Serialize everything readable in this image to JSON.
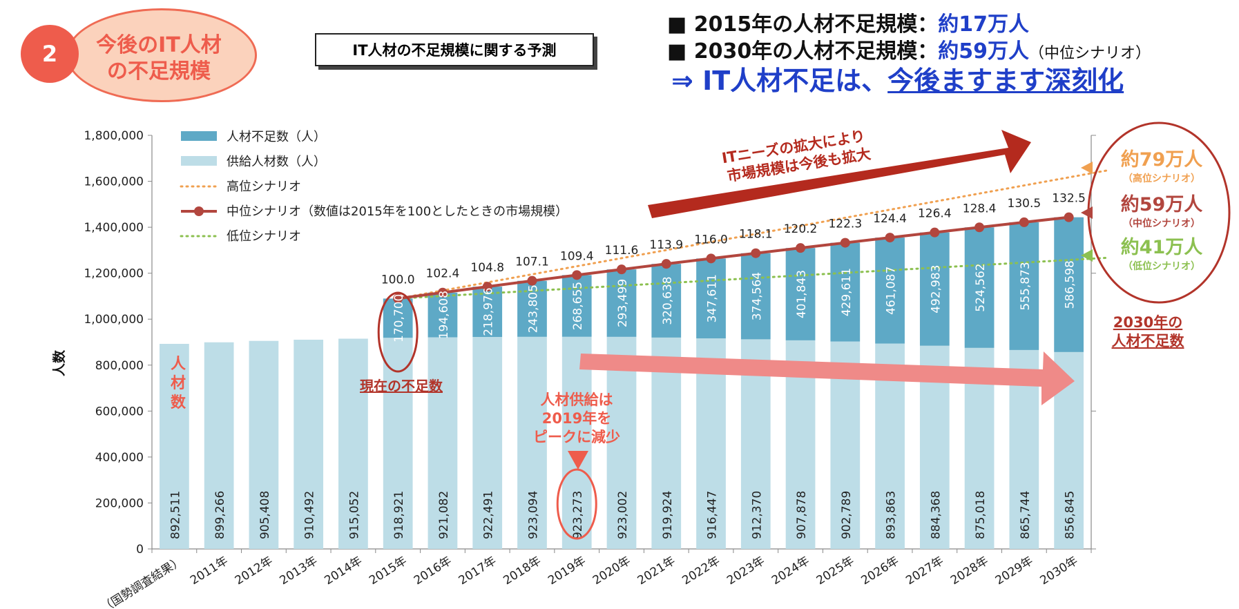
{
  "badge": {
    "number": "2",
    "line1": "今後のIT人材",
    "line2": "の不足規模"
  },
  "subtitle": "IT人材の不足規模に関する予測",
  "headline": {
    "line1_prefix": "■ 2015年の人材不足規模：",
    "line1_value": "約17万人",
    "line2_prefix": "■ 2030年の人材不足規模：",
    "line2_value": "約59万人",
    "line2_note": "（中位シナリオ）",
    "line3_prefix": "⇒ IT人材不足は、",
    "line3_emphasis": "今後ますます深刻化"
  },
  "annotations": {
    "market_line1": "ITニーズの拡大により",
    "market_line2": "市場規模は今後も拡大",
    "current_shortage": "現在の不足数",
    "supply_peak": [
      "人材供給は",
      "2019年を",
      "ピークに減少"
    ],
    "supply_label": [
      "人",
      "材",
      "数"
    ],
    "high": {
      "value": "約79万人",
      "label": "（高位シナリオ）"
    },
    "mid": {
      "value": "約59万人",
      "label": "（中位シナリオ）"
    },
    "low": {
      "value": "約41万人",
      "label": "（低位シナリオ）"
    },
    "shortage_2030": [
      "2030年の",
      "人材不足数"
    ]
  },
  "colors": {
    "shortage": "#5ea9c6",
    "supply": "#bddde7",
    "high": "#f0a050",
    "mid": "#b2463e",
    "low": "#8cc050",
    "arrow_up": "#b42a1e",
    "arrow_down": "#ef8a88"
  },
  "chart_data": {
    "type": "bar",
    "stacked": true,
    "categories": [
      "（国勢調査結果）",
      "2011年",
      "2012年",
      "2013年",
      "2014年",
      "2015年",
      "2016年",
      "2017年",
      "2018年",
      "2019年",
      "2020年",
      "2021年",
      "2022年",
      "2023年",
      "2024年",
      "2025年",
      "2026年",
      "2027年",
      "2028年",
      "2029年",
      "2030年"
    ],
    "ylabel": "人数",
    "ylim": [
      0,
      1800000
    ],
    "yticks": [
      0,
      200000,
      400000,
      600000,
      800000,
      1000000,
      1200000,
      1400000,
      1600000,
      1800000
    ],
    "ytick_labels": [
      "0",
      "200,000",
      "400,000",
      "600,000",
      "800,000",
      "1,000,000",
      "1,200,000",
      "1,400,000",
      "1,600,000",
      "1,800,000"
    ],
    "legend_position": "top-left",
    "legend": [
      "人材不足数（人）",
      "供給人材数（人）",
      "高位シナリオ",
      "中位シナリオ（数値は2015年を100としたときの市場規模）",
      "低位シナリオ"
    ],
    "series": [
      {
        "name": "供給人材数（人）",
        "values": [
          892511,
          899266,
          905408,
          910492,
          915052,
          918921,
          921082,
          922491,
          923094,
          923273,
          923002,
          919924,
          916447,
          912370,
          907878,
          902789,
          893863,
          884368,
          875018,
          865744,
          856845
        ],
        "labels": [
          "892,511",
          "899,266",
          "905,408",
          "910,492",
          "915,052",
          "918,921",
          "921,082",
          "922,491",
          "923,094",
          "923,273",
          "923,002",
          "919,924",
          "916,447",
          "912,370",
          "907,878",
          "902,789",
          "893,863",
          "884,368",
          "875,018",
          "865,744",
          "856,845"
        ]
      },
      {
        "name": "人材不足数（人）",
        "values": [
          null,
          null,
          null,
          null,
          null,
          170700,
          194608,
          218976,
          243805,
          268655,
          293499,
          320638,
          347611,
          374564,
          401843,
          429611,
          461087,
          492983,
          524562,
          555873,
          586598
        ],
        "labels": [
          "",
          "",
          "",
          "",
          "",
          "170,700",
          "194,608",
          "218,976",
          "243,805",
          "268,655",
          "293,499",
          "320,638",
          "347,611",
          "374,564",
          "401,843",
          "429,611",
          "461,087",
          "492,983",
          "524,562",
          "555,873",
          "586,598"
        ]
      }
    ],
    "lines": {
      "high": {
        "name": "高位シナリオ",
        "values": [
          null,
          null,
          null,
          null,
          null,
          1089621,
          null,
          null,
          null,
          null,
          null,
          null,
          null,
          null,
          null,
          null,
          null,
          null,
          null,
          null,
          1647000
        ]
      },
      "mid": {
        "name": "中位シナリオ",
        "values": [
          null,
          null,
          null,
          null,
          null,
          1089621,
          1115690,
          1141467,
          1166899,
          1191928,
          1216501,
          1240562,
          1264058,
          1286934,
          1309721,
          1332400,
          1354950,
          1377351,
          1399580,
          1421617,
          1443443
        ],
        "index_labels": [
          "",
          "",
          "",
          "",
          "",
          "100.0",
          "102.4",
          "104.8",
          "107.1",
          "109.4",
          "111.6",
          "113.9",
          "116.0",
          "118.1",
          "120.2",
          "122.3",
          "124.4",
          "126.4",
          "128.4",
          "130.5",
          "132.5"
        ]
      },
      "low": {
        "name": "低位シナリオ",
        "values": [
          null,
          null,
          null,
          null,
          null,
          1089621,
          null,
          null,
          null,
          null,
          null,
          null,
          null,
          null,
          null,
          null,
          null,
          null,
          null,
          null,
          1267000
        ]
      }
    }
  }
}
